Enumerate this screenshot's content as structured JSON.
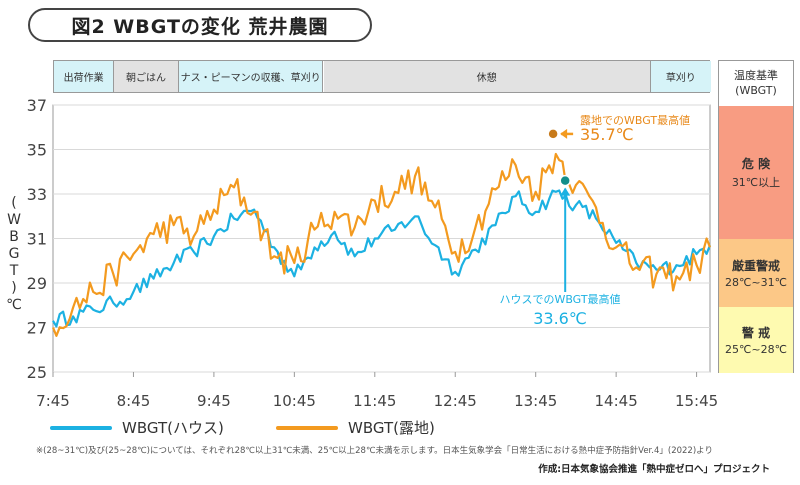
{
  "title": "図2 WBGTの変化 荒井農園",
  "work_schedule": [
    {
      "label": "出荷作業",
      "start": "7:45",
      "end": "8:30",
      "color": "#d6f3f8"
    },
    {
      "label": "朝ごはん",
      "start": "8:30",
      "end": "9:18",
      "color": "#e2e2e2"
    },
    {
      "label": "ナス・ピーマンの収穫、草刈り",
      "start": "9:18",
      "end": "11:06",
      "color": "#d6f3f8"
    },
    {
      "label": "休憩",
      "start": "11:06",
      "end": "15:10",
      "color": "#e2e2e2"
    },
    {
      "label": "草刈り",
      "start": "15:10",
      "end": "15:55",
      "color": "#d6f3f8"
    }
  ],
  "criteria": {
    "heading": "温度基準\n(WBGT)",
    "levels": [
      {
        "label": "危 険",
        "range": "31℃以上",
        "color": "#f89c82"
      },
      {
        "label": "厳重警戒",
        "range": "28℃~31℃",
        "color": "#fcc887"
      },
      {
        "label": "警 戒",
        "range": "25℃~28℃",
        "color": "#fefab0"
      }
    ]
  },
  "annotations": {
    "field_max": "露地でのWBGT最高値",
    "field_max_value": "35.7℃",
    "house_max": "ハウスでのWBGT最高値",
    "house_max_value": "33.6℃"
  },
  "ylabel": "(WBGT)℃",
  "legend": {
    "house": "WBGT(ハウス)",
    "field": "WBGT(露地)"
  },
  "colors": {
    "house": "#1cb1e2",
    "field": "#f39a1f"
  },
  "footnote": "※(28~31℃)及び(25~28℃)については、それぞれ28℃以上31℃未満、25℃以上28℃未満を示します。日本生気象学会「日常生活における熱中症予防指針Ver.4」(2022)より",
  "credit": "作成:日本気象協会推進「熱中症ゼロへ」プロジェクト",
  "chart_data": {
    "type": "line",
    "x_ticks": [
      "7:45",
      "8:45",
      "9:45",
      "10:45",
      "11:45",
      "12:45",
      "13:45",
      "14:45",
      "15:45"
    ],
    "y_ticks": [
      25,
      27,
      29,
      31,
      33,
      35,
      37
    ],
    "ylim": [
      25,
      37
    ],
    "xlim": [
      "7:45",
      "15:55"
    ],
    "series": [
      {
        "name": "WBGT(ハウス)",
        "times": [
          "7:45",
          "8:00",
          "8:15",
          "8:30",
          "8:45",
          "9:00",
          "9:15",
          "9:30",
          "9:45",
          "10:00",
          "10:15",
          "10:30",
          "10:45",
          "11:00",
          "11:15",
          "11:30",
          "11:45",
          "12:00",
          "12:15",
          "12:30",
          "12:45",
          "13:00",
          "13:15",
          "13:30",
          "13:45",
          "14:00",
          "14:15",
          "14:30",
          "14:45",
          "15:00",
          "15:15",
          "15:30",
          "15:45",
          "15:55"
        ],
        "values": [
          27.3,
          27.5,
          27.8,
          28.1,
          28.6,
          29.2,
          29.9,
          30.4,
          31.1,
          31.9,
          32.3,
          30.6,
          29.3,
          30.6,
          31.3,
          30.2,
          31.0,
          31.4,
          32.0,
          30.7,
          29.5,
          30.5,
          31.6,
          32.9,
          32.2,
          33.1,
          32.5,
          31.9,
          30.8,
          29.9,
          29.6,
          29.8,
          30.3,
          30.7
        ]
      },
      {
        "name": "WBGT(露地)",
        "times": [
          "7:45",
          "8:00",
          "8:15",
          "8:30",
          "8:45",
          "9:00",
          "9:15",
          "9:30",
          "9:45",
          "10:00",
          "10:15",
          "10:30",
          "10:45",
          "11:00",
          "11:15",
          "11:30",
          "11:45",
          "12:00",
          "12:15",
          "12:30",
          "12:45",
          "13:00",
          "13:15",
          "13:30",
          "13:45",
          "14:00",
          "14:15",
          "14:30",
          "14:45",
          "15:00",
          "15:15",
          "15:30",
          "15:45",
          "15:55"
        ],
        "values": [
          27.0,
          27.9,
          28.6,
          29.4,
          30.3,
          31.2,
          31.6,
          31.1,
          32.3,
          33.3,
          32.2,
          30.2,
          29.9,
          31.4,
          32.2,
          31.5,
          32.7,
          33.1,
          33.8,
          32.4,
          30.4,
          31.5,
          33.2,
          34.3,
          33.1,
          34.8,
          33.4,
          32.4,
          30.6,
          29.7,
          29.4,
          29.3,
          29.8,
          30.6
        ]
      }
    ],
    "peaks": [
      {
        "series": "WBGT(露地)",
        "time": "13:58",
        "value": 35.7
      },
      {
        "series": "WBGT(ハウス)",
        "time": "14:07",
        "value": 33.6
      }
    ]
  }
}
